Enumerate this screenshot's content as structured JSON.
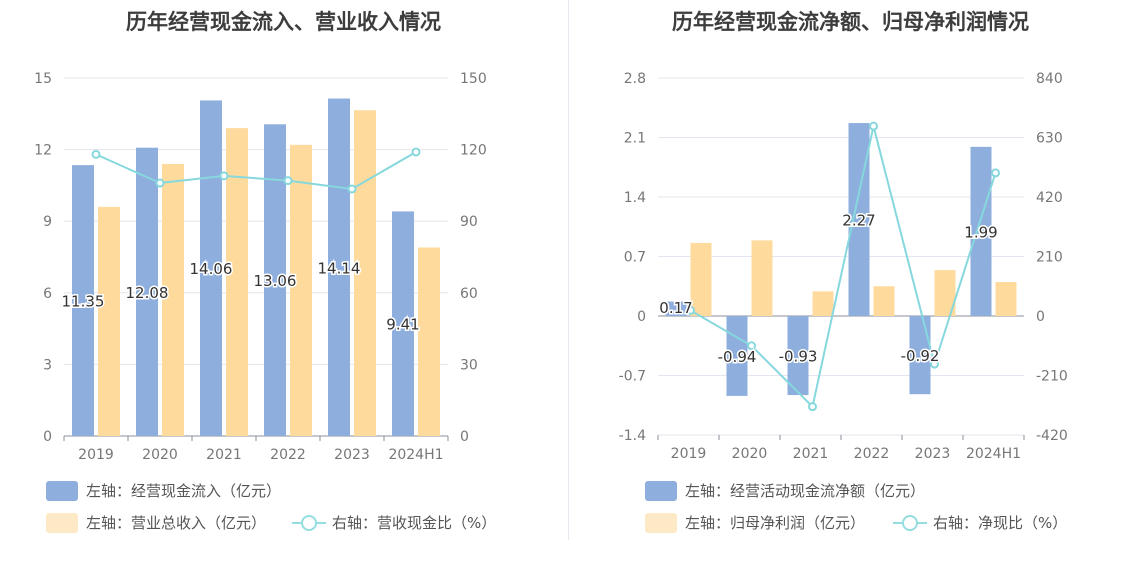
{
  "colors": {
    "bar_blue": "#8eaedd",
    "bar_orange": "#fedb9d",
    "line_teal": "#86d8dd",
    "legend_orange": "#fde9c6"
  },
  "charts": [
    {
      "title": "历年经营现金流入、营业收入情况",
      "legend": {
        "bar1": "左轴：经营现金流入（亿元）",
        "bar2": "左轴：营业总收入（亿元）",
        "line": "右轴：营收现金比（%）"
      }
    },
    {
      "title": "历年经营现金流净额、归母净利润情况",
      "legend": {
        "bar1": "左轴：经营活动现金流净额（亿元）",
        "bar2": "左轴：归母净利润（亿元）",
        "line": "右轴：净现比（%）"
      }
    }
  ],
  "chart_data": [
    {
      "type": "bar",
      "categories": [
        "2019",
        "2020",
        "2021",
        "2022",
        "2023",
        "2024H1"
      ],
      "left_ylim": [
        0,
        15
      ],
      "left_ticks": [
        "0",
        "3",
        "6",
        "9",
        "12",
        "15"
      ],
      "right_ylim": [
        0,
        150
      ],
      "right_ticks": [
        "0",
        "30",
        "60",
        "90",
        "120",
        "150"
      ],
      "series": [
        {
          "name": "左轴：经营现金流入（亿元）",
          "axis": "left",
          "values": [
            11.35,
            12.08,
            14.06,
            13.06,
            14.14,
            9.41
          ],
          "labels": [
            "11.35",
            "12.08",
            "14.06",
            "13.06",
            "14.14",
            "9.41"
          ]
        },
        {
          "name": "左轴：营业总收入（亿元）",
          "axis": "left",
          "values": [
            9.6,
            11.4,
            12.9,
            12.2,
            13.65,
            7.9
          ]
        },
        {
          "name": "右轴：营收现金比（%）",
          "axis": "right",
          "type": "line",
          "values": [
            118,
            106,
            109,
            107,
            103.5,
            119
          ]
        }
      ]
    },
    {
      "type": "bar",
      "categories": [
        "2019",
        "2020",
        "2021",
        "2022",
        "2023",
        "2024H1"
      ],
      "left_ylim": [
        -1.4,
        2.8
      ],
      "left_ticks": [
        "-1.4",
        "-0.7",
        "0",
        "0.7",
        "1.4",
        "2.1",
        "2.8"
      ],
      "right_ylim": [
        -420,
        840
      ],
      "right_ticks": [
        "-420",
        "-210",
        "0",
        "210",
        "420",
        "630",
        "840"
      ],
      "series": [
        {
          "name": "左轴：经营活动现金流净额（亿元）",
          "axis": "left",
          "values": [
            0.17,
            -0.94,
            -0.93,
            2.27,
            -0.92,
            1.99
          ],
          "labels": [
            "0.17",
            "-0.94",
            "-0.93",
            "2.27",
            "-0.92",
            "1.99"
          ]
        },
        {
          "name": "左轴：归母净利润（亿元）",
          "axis": "left",
          "values": [
            0.86,
            0.89,
            0.29,
            0.35,
            0.54,
            0.4
          ]
        },
        {
          "name": "右轴：净现比（%）",
          "axis": "right",
          "type": "line",
          "values": [
            20,
            -105,
            -320,
            670,
            -170,
            505
          ]
        }
      ]
    }
  ]
}
